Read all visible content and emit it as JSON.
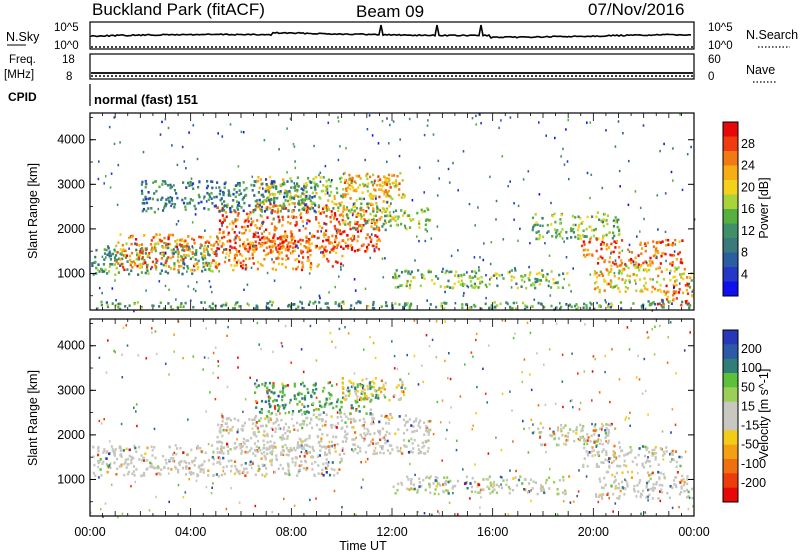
{
  "header": {
    "station": "Buckland Park (fitACF)",
    "beam": "Beam 09",
    "date": "07/Nov/2016"
  },
  "top_panels": {
    "nsky_label": "N.Sky",
    "nsky_ticks": [
      "10^5",
      "10^0"
    ],
    "nsearch_label": "N.Search",
    "nsearch_ticks": [
      "10^5",
      "10^0"
    ],
    "freq_label": "Freq.",
    "freq_unit": "[MHz]",
    "freq_ticks": [
      "18",
      "8"
    ],
    "nave_label": "Nave",
    "nave_ticks": [
      "60",
      "0"
    ],
    "cpid_label": "CPID",
    "cpid_text": "normal (fast) 151"
  },
  "chart_data": [
    {
      "type": "heatmap",
      "name": "power",
      "ylabel": "Slant Range [km]",
      "xlabel": "",
      "ylim": [
        180,
        4600
      ],
      "yticks": [
        1000,
        2000,
        3000,
        4000
      ],
      "xlim": [
        0,
        24
      ],
      "colorbar": {
        "label": "Power [dB]",
        "ticks": [
          "28",
          "24",
          "20",
          "16",
          "12",
          "8",
          "4"
        ],
        "colors": [
          "#e8080a",
          "#f03a10",
          "#f37a12",
          "#f7ad16",
          "#f4d21c",
          "#a8d43a",
          "#56b040",
          "#3f8f68",
          "#3a7a7a",
          "#2a5ea0",
          "#2438c8",
          "#1010ef"
        ]
      },
      "bands": [
        {
          "t0": 0.0,
          "t1": 5.0,
          "r0": 1000,
          "r1": 1700,
          "v": 12
        },
        {
          "t0": 1.0,
          "t1": 10.0,
          "r0": 1100,
          "r1": 1900,
          "v": 24
        },
        {
          "t0": 5.0,
          "t1": 11.5,
          "r0": 1500,
          "r1": 2600,
          "v": 26
        },
        {
          "t0": 6.5,
          "t1": 12.0,
          "r0": 2400,
          "r1": 3200,
          "v": 18
        },
        {
          "t0": 10.0,
          "t1": 12.5,
          "r0": 2700,
          "r1": 3300,
          "v": 22
        },
        {
          "t0": 10.0,
          "t1": 13.5,
          "r0": 2000,
          "r1": 2500,
          "v": 16
        },
        {
          "t0": 2.0,
          "t1": 9.0,
          "r0": 2400,
          "r1": 3100,
          "v": 9
        },
        {
          "t0": 12.0,
          "t1": 19.0,
          "r0": 700,
          "r1": 1100,
          "v": 14
        },
        {
          "t0": 17.5,
          "t1": 21.0,
          "r0": 1800,
          "r1": 2400,
          "v": 14
        },
        {
          "t0": 19.5,
          "t1": 23.5,
          "r0": 1200,
          "r1": 1800,
          "v": 26
        },
        {
          "t0": 20.0,
          "t1": 24.0,
          "r0": 600,
          "r1": 1200,
          "v": 20
        },
        {
          "t0": 22.5,
          "t1": 24.0,
          "r0": 300,
          "r1": 800,
          "v": 25
        },
        {
          "t0": 0.0,
          "t1": 24.0,
          "r0": 200,
          "r1": 400,
          "v": 12
        }
      ]
    },
    {
      "type": "heatmap",
      "name": "velocity",
      "ylabel": "Slant Range [km]",
      "xlabel": "Time UT",
      "ylim": [
        180,
        4600
      ],
      "yticks": [
        1000,
        2000,
        3000,
        4000
      ],
      "xlim": [
        0,
        24
      ],
      "xticks": [
        "00:00",
        "04:00",
        "08:00",
        "12:00",
        "16:00",
        "20:00",
        "00:00"
      ],
      "colorbar": {
        "label": "Velocity [m s^-1]",
        "ticks": [
          "200",
          "100",
          "50",
          "15",
          "-15",
          "-50",
          "-100",
          "-200"
        ],
        "colors": [
          "#2838b8",
          "#2c5aa8",
          "#2f7e78",
          "#5cc03a",
          "#9ad05a",
          "#c8c8c0",
          "#c8c8c0",
          "#f2cc18",
          "#f3a014",
          "#f07010",
          "#ec3c0c",
          "#e80808"
        ]
      },
      "bands": [
        {
          "t0": 0.0,
          "t1": 10.0,
          "r0": 1100,
          "r1": 1800,
          "v": 0
        },
        {
          "t0": 5.0,
          "t1": 13.5,
          "r0": 1600,
          "r1": 2500,
          "v": 0
        },
        {
          "t0": 6.5,
          "t1": 11.5,
          "r0": 2500,
          "r1": 3200,
          "v": 120
        },
        {
          "t0": 10.0,
          "t1": 12.5,
          "r0": 2800,
          "r1": 3300,
          "v": -60
        },
        {
          "t0": 12.0,
          "t1": 19.0,
          "r0": 700,
          "r1": 1100,
          "v": 30
        },
        {
          "t0": 17.5,
          "t1": 21.0,
          "r0": 1800,
          "r1": 2300,
          "v": 30
        },
        {
          "t0": 19.5,
          "t1": 23.5,
          "r0": 1300,
          "r1": 1800,
          "v": 0
        },
        {
          "t0": 20.0,
          "t1": 24.0,
          "r0": 600,
          "r1": 1200,
          "v": 0
        }
      ]
    }
  ]
}
